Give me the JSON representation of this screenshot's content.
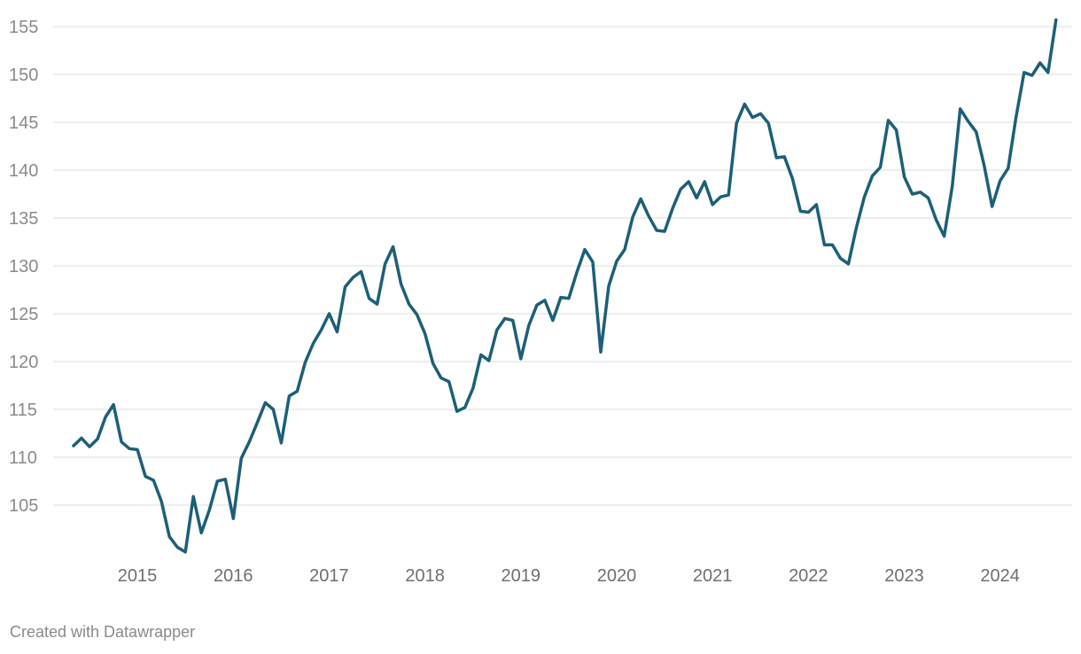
{
  "chart_data": {
    "type": "line",
    "title": "",
    "xlabel": "",
    "ylabel": "",
    "ylim": [
      100,
      155
    ],
    "xlim": [
      "2014-09",
      "2024-12"
    ],
    "grid": true,
    "line_color": "#1c5f78",
    "y_ticks": [
      105,
      110,
      115,
      120,
      125,
      130,
      135,
      140,
      145,
      150,
      155
    ],
    "x_ticks": [
      "2015",
      "2016",
      "2017",
      "2018",
      "2019",
      "2020",
      "2021",
      "2022",
      "2023",
      "2024"
    ],
    "series": [
      {
        "x": [
          "2014-09",
          "2014-10",
          "2014-11",
          "2014-12",
          "2015-01",
          "2015-02",
          "2015-03",
          "2015-04",
          "2015-05",
          "2015-06",
          "2015-07",
          "2015-08",
          "2015-09",
          "2015-10",
          "2015-11",
          "2015-12",
          "2016-01",
          "2016-02",
          "2016-03",
          "2016-04",
          "2016-05",
          "2016-06",
          "2016-07",
          "2016-08",
          "2016-09",
          "2016-10",
          "2016-11",
          "2016-12",
          "2017-01",
          "2017-02",
          "2017-03",
          "2017-04",
          "2017-05",
          "2017-06",
          "2017-07",
          "2017-08",
          "2017-09",
          "2017-10",
          "2017-11",
          "2017-12",
          "2018-01",
          "2018-02",
          "2018-03",
          "2018-04",
          "2018-05",
          "2018-06",
          "2018-07",
          "2018-08",
          "2018-09",
          "2018-10",
          "2018-11",
          "2018-12",
          "2019-01",
          "2019-02",
          "2019-03",
          "2019-04",
          "2019-05",
          "2019-06",
          "2019-07",
          "2019-08",
          "2019-09",
          "2019-10",
          "2019-11",
          "2019-12",
          "2020-01",
          "2020-02",
          "2020-03",
          "2020-04",
          "2020-05",
          "2020-06",
          "2020-07",
          "2020-08",
          "2020-09",
          "2020-10",
          "2020-11",
          "2020-12",
          "2021-01",
          "2021-02",
          "2021-03",
          "2021-04",
          "2021-05",
          "2021-06",
          "2021-07",
          "2021-08",
          "2021-09",
          "2021-10",
          "2021-11",
          "2021-12",
          "2022-01",
          "2022-02",
          "2022-03",
          "2022-04",
          "2022-05",
          "2022-06",
          "2022-07",
          "2022-08",
          "2022-09",
          "2022-10",
          "2022-11",
          "2022-12",
          "2023-01",
          "2023-02",
          "2023-03",
          "2023-04",
          "2023-05",
          "2023-06",
          "2023-07",
          "2023-08",
          "2023-09",
          "2023-10",
          "2023-11",
          "2023-12",
          "2024-01",
          "2024-02",
          "2024-03",
          "2024-04",
          "2024-05",
          "2024-06",
          "2024-07",
          "2024-08",
          "2024-09",
          "2024-10",
          "2024-11",
          "2024-12"
        ],
        "values": [
          111.2,
          112.0,
          111.1,
          111.9,
          114.2,
          115.5,
          111.6,
          110.9,
          110.8,
          108.0,
          107.6,
          105.4,
          101.7,
          100.6,
          100.1,
          105.9,
          102.1,
          104.5,
          107.5,
          107.7,
          103.6,
          109.9,
          111.6,
          113.6,
          115.7,
          115.0,
          111.5,
          116.4,
          116.9,
          119.9,
          121.9,
          123.3,
          125.0,
          123.1,
          127.8,
          128.8,
          129.4,
          126.6,
          126.0,
          130.2,
          132.0,
          128.1,
          126.0,
          124.9,
          122.9,
          119.8,
          118.3,
          117.9,
          114.8,
          115.2,
          117.2,
          120.7,
          120.1,
          123.3,
          124.5,
          124.3,
          120.3,
          123.8,
          125.9,
          126.4,
          124.3,
          126.7,
          126.6,
          129.3,
          131.7,
          130.4,
          121.0,
          127.9,
          130.5,
          131.7,
          135.1,
          137.0,
          135.2,
          133.7,
          133.6,
          136.0,
          138.0,
          138.8,
          137.1,
          138.8,
          136.4,
          137.2,
          137.4,
          144.9,
          146.9,
          145.5,
          145.9,
          144.9,
          141.3,
          141.4,
          139.1,
          135.7,
          135.6,
          136.4,
          132.2,
          132.2,
          130.8,
          130.2,
          134.0,
          137.2,
          139.4,
          140.3,
          145.2,
          144.2,
          139.3,
          137.5,
          137.7,
          137.1,
          134.8,
          133.1,
          138.3,
          146.4,
          145.1,
          144.0,
          140.5,
          136.2,
          138.9,
          140.2,
          145.6,
          150.2,
          149.9,
          151.2,
          150.2,
          155.7
        ]
      }
    ]
  },
  "footer": {
    "credit": "Created with Datawrapper"
  }
}
